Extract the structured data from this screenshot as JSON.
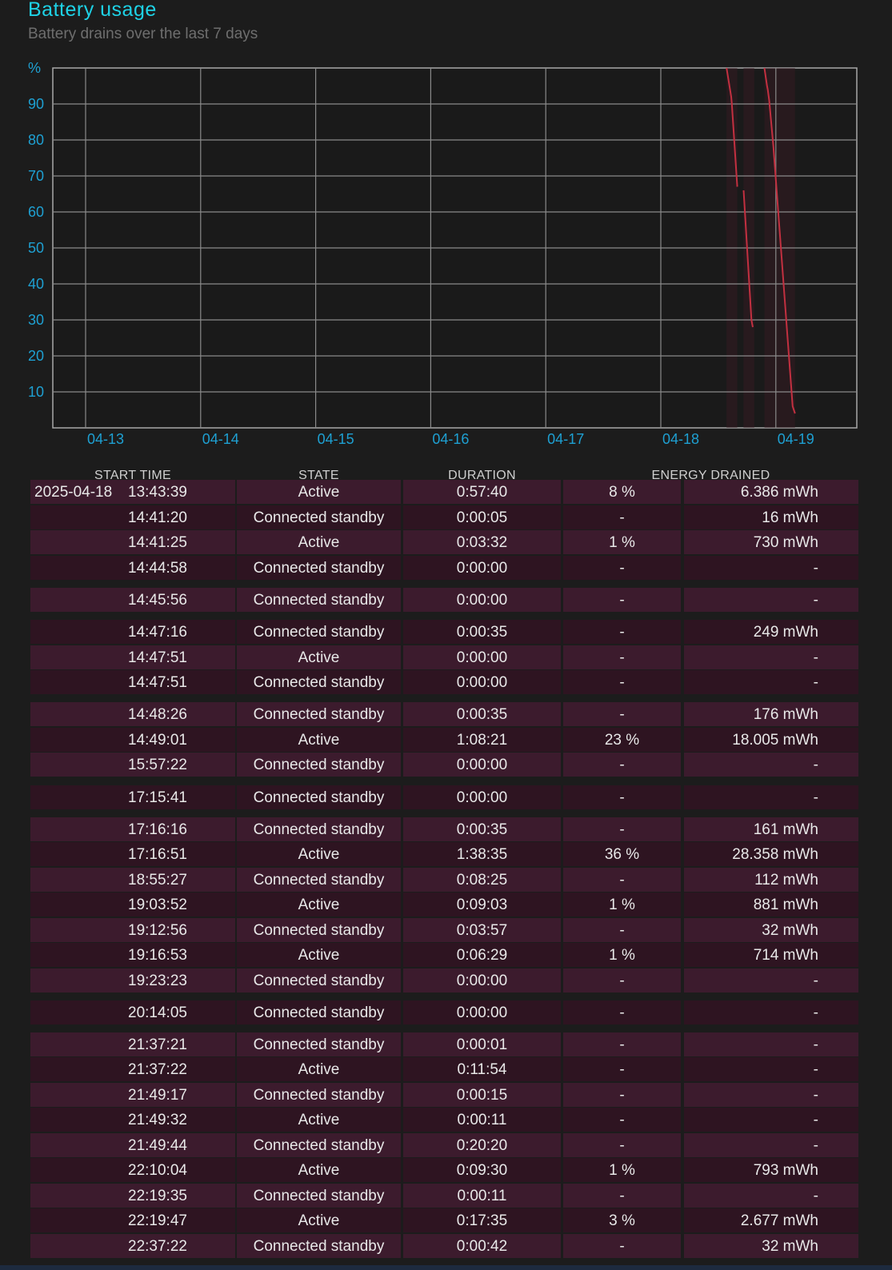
{
  "header": {
    "title": "Battery usage",
    "subtitle": "Battery drains over the last 7 days"
  },
  "colors": {
    "accent": "#1ed2e6",
    "axis_label": "#1ea0d2",
    "drain_line": "#c23040",
    "row_light": "#3c1b2d",
    "row_dark": "#2e1421"
  },
  "chart_data": {
    "type": "line",
    "title": "",
    "ylabel": "%",
    "xlabel": "",
    "ylim": [
      0,
      100
    ],
    "yticks": [
      10,
      20,
      30,
      40,
      50,
      60,
      70,
      80,
      90
    ],
    "x_ticks": [
      "04-13",
      "04-14",
      "04-15",
      "04-16",
      "04-17",
      "04-18",
      "04-19"
    ],
    "grid": true,
    "series": [
      {
        "segment": 1,
        "points": [
          [
            "04-18 13:43",
            100
          ],
          [
            "04-18 14:41",
            92
          ],
          [
            "04-18 14:45",
            91
          ],
          [
            "04-18 14:49",
            90
          ],
          [
            "04-18 15:57",
            67
          ]
        ]
      },
      {
        "segment": 2,
        "points": [
          [
            "04-18 17:16",
            66
          ],
          [
            "04-18 18:55",
            30
          ],
          [
            "04-18 19:03",
            29
          ],
          [
            "04-18 19:12",
            28
          ]
        ]
      },
      {
        "segment": 3,
        "points": [
          [
            "04-18 21:37",
            100
          ],
          [
            "04-18 22:10",
            95
          ],
          [
            "04-18 22:19",
            94
          ],
          [
            "04-18 22:37",
            91
          ],
          [
            "04-18 23:30",
            78
          ],
          [
            "04-19 00:30",
            60
          ],
          [
            "04-19 01:30",
            42
          ],
          [
            "04-19 02:30",
            24
          ],
          [
            "04-19 03:30",
            6
          ],
          [
            "04-19 04:00",
            4
          ]
        ]
      }
    ]
  },
  "table": {
    "headers": [
      "START TIME",
      "STATE",
      "DURATION",
      "ENERGY DRAINED"
    ],
    "rows": [
      {
        "date": "2025-04-18",
        "time": "13:43:39",
        "state": "Active",
        "duration": "0:57:40",
        "percent": "8 %",
        "energy": "6.386 mWh"
      },
      {
        "date": "",
        "time": "14:41:20",
        "state": "Connected standby",
        "duration": "0:00:05",
        "percent": "-",
        "energy": "16 mWh"
      },
      {
        "date": "",
        "time": "14:41:25",
        "state": "Active",
        "duration": "0:03:32",
        "percent": "1 %",
        "energy": "730 mWh"
      },
      {
        "date": "",
        "time": "14:44:58",
        "state": "Connected standby",
        "duration": "0:00:00",
        "percent": "-",
        "energy": "-"
      },
      {
        "date": "",
        "time": "14:45:56",
        "state": "Connected standby",
        "duration": "0:00:00",
        "percent": "-",
        "energy": "-"
      },
      {
        "date": "",
        "time": "14:47:16",
        "state": "Connected standby",
        "duration": "0:00:35",
        "percent": "-",
        "energy": "249 mWh"
      },
      {
        "date": "",
        "time": "14:47:51",
        "state": "Active",
        "duration": "0:00:00",
        "percent": "-",
        "energy": "-"
      },
      {
        "date": "",
        "time": "14:47:51",
        "state": "Connected standby",
        "duration": "0:00:00",
        "percent": "-",
        "energy": "-"
      },
      {
        "date": "",
        "time": "14:48:26",
        "state": "Connected standby",
        "duration": "0:00:35",
        "percent": "-",
        "energy": "176 mWh"
      },
      {
        "date": "",
        "time": "14:49:01",
        "state": "Active",
        "duration": "1:08:21",
        "percent": "23 %",
        "energy": "18.005 mWh"
      },
      {
        "date": "",
        "time": "15:57:22",
        "state": "Connected standby",
        "duration": "0:00:00",
        "percent": "-",
        "energy": "-"
      },
      {
        "date": "",
        "time": "17:15:41",
        "state": "Connected standby",
        "duration": "0:00:00",
        "percent": "-",
        "energy": "-"
      },
      {
        "date": "",
        "time": "17:16:16",
        "state": "Connected standby",
        "duration": "0:00:35",
        "percent": "-",
        "energy": "161 mWh"
      },
      {
        "date": "",
        "time": "17:16:51",
        "state": "Active",
        "duration": "1:38:35",
        "percent": "36 %",
        "energy": "28.358 mWh"
      },
      {
        "date": "",
        "time": "18:55:27",
        "state": "Connected standby",
        "duration": "0:08:25",
        "percent": "-",
        "energy": "112 mWh"
      },
      {
        "date": "",
        "time": "19:03:52",
        "state": "Active",
        "duration": "0:09:03",
        "percent": "1 %",
        "energy": "881 mWh"
      },
      {
        "date": "",
        "time": "19:12:56",
        "state": "Connected standby",
        "duration": "0:03:57",
        "percent": "-",
        "energy": "32 mWh"
      },
      {
        "date": "",
        "time": "19:16:53",
        "state": "Active",
        "duration": "0:06:29",
        "percent": "1 %",
        "energy": "714 mWh"
      },
      {
        "date": "",
        "time": "19:23:23",
        "state": "Connected standby",
        "duration": "0:00:00",
        "percent": "-",
        "energy": "-"
      },
      {
        "date": "",
        "time": "20:14:05",
        "state": "Connected standby",
        "duration": "0:00:00",
        "percent": "-",
        "energy": "-"
      },
      {
        "date": "",
        "time": "21:37:21",
        "state": "Connected standby",
        "duration": "0:00:01",
        "percent": "-",
        "energy": "-"
      },
      {
        "date": "",
        "time": "21:37:22",
        "state": "Active",
        "duration": "0:11:54",
        "percent": "-",
        "energy": "-"
      },
      {
        "date": "",
        "time": "21:49:17",
        "state": "Connected standby",
        "duration": "0:00:15",
        "percent": "-",
        "energy": "-"
      },
      {
        "date": "",
        "time": "21:49:32",
        "state": "Active",
        "duration": "0:00:11",
        "percent": "-",
        "energy": "-"
      },
      {
        "date": "",
        "time": "21:49:44",
        "state": "Connected standby",
        "duration": "0:20:20",
        "percent": "-",
        "energy": "-"
      },
      {
        "date": "",
        "time": "22:10:04",
        "state": "Active",
        "duration": "0:09:30",
        "percent": "1 %",
        "energy": "793 mWh"
      },
      {
        "date": "",
        "time": "22:19:35",
        "state": "Connected standby",
        "duration": "0:00:11",
        "percent": "-",
        "energy": "-"
      },
      {
        "date": "",
        "time": "22:19:47",
        "state": "Active",
        "duration": "0:17:35",
        "percent": "3 %",
        "energy": "2.677 mWh"
      },
      {
        "date": "",
        "time": "22:37:22",
        "state": "Connected standby",
        "duration": "0:00:42",
        "percent": "-",
        "energy": "32 mWh"
      }
    ]
  }
}
